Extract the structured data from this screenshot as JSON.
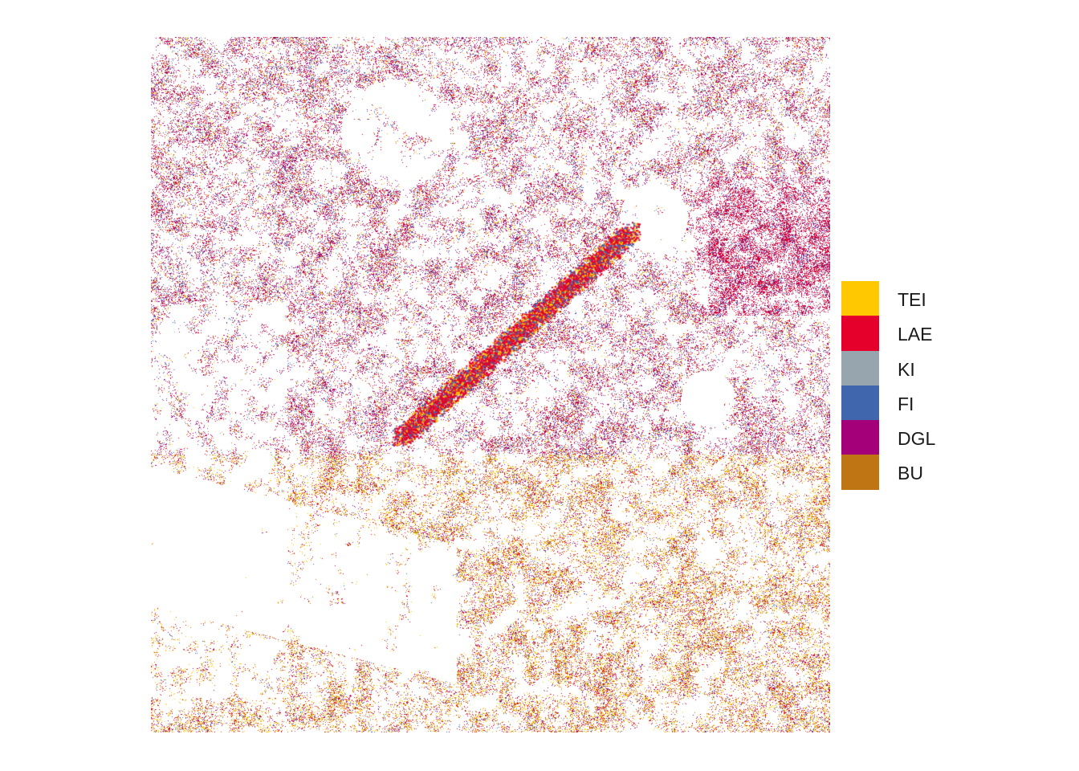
{
  "legend": {
    "items": [
      {
        "label": "TEI",
        "color": "#FFC800"
      },
      {
        "label": "LAE",
        "color": "#E4002B"
      },
      {
        "label": "KI",
        "color": "#97A6AE"
      },
      {
        "label": "FI",
        "color": "#4066AE"
      },
      {
        "label": "DGL",
        "color": "#A4007A"
      },
      {
        "label": "BU",
        "color": "#C07515"
      }
    ]
  },
  "map": {
    "background": "#ffffff"
  }
}
